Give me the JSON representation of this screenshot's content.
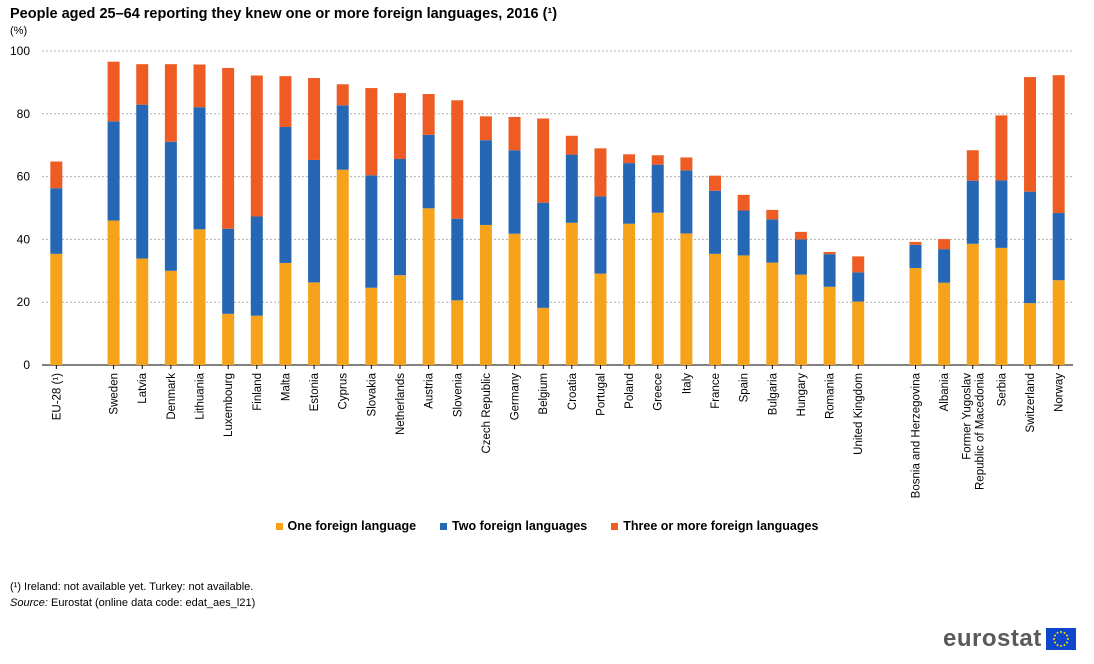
{
  "title": "People aged 25–64 reporting they knew one or more foreign languages, 2016 (¹)",
  "unit": "(%)",
  "footnote": "(¹) Ireland: not available yet. Turkey: not available.",
  "source_label": "Source:",
  "source_text": "Eurostat (online data code: edat_aes_l21)",
  "logo_text": "eurostat",
  "colors": {
    "one": "#f7a21b",
    "two": "#2667b5",
    "three": "#ee5c24",
    "grid": "#b0b0b0"
  },
  "chart_data": {
    "type": "bar",
    "stacked": true,
    "title": "People aged 25–64 reporting they knew one or more foreign languages, 2016 (¹)",
    "ylabel": "(%)",
    "ylim": [
      0,
      100
    ],
    "yticks": [
      0,
      20,
      40,
      60,
      80,
      100
    ],
    "grid": true,
    "legend_position": "bottom",
    "categories": [
      "EU-28 (¹)",
      "",
      "Sweden",
      "Latvia",
      "Denmark",
      "Lithuania",
      "Luxembourg",
      "Finland",
      "Malta",
      "Estonia",
      "Cyprus",
      "Slovakia",
      "Netherlands",
      "Austria",
      "Slovenia",
      "Czech Republic",
      "Germany",
      "Belgium",
      "Croatia",
      "Portugal",
      "Poland",
      "Greece",
      "Italy",
      "France",
      "Spain",
      "Bulgaria",
      "Hungary",
      "Romania",
      "United Kingdom",
      "",
      "Bosnia and Herzegovina",
      "Albania",
      "Former Yugoslav|Republic of Macedonia",
      "Serbia",
      "Switzerland",
      "Norway"
    ],
    "series": [
      {
        "name": "One foreign language",
        "values": [
          35.4,
          null,
          46.0,
          33.9,
          30.0,
          43.2,
          16.3,
          15.7,
          32.5,
          26.3,
          62.2,
          24.6,
          28.6,
          49.9,
          20.6,
          44.6,
          41.8,
          18.2,
          45.3,
          29.1,
          45.0,
          48.5,
          41.9,
          35.4,
          34.9,
          32.6,
          28.8,
          24.9,
          20.2,
          null,
          30.9,
          26.2,
          38.6,
          37.3,
          19.7,
          27.0
        ]
      },
      {
        "name": "Two foreign languages",
        "values": [
          20.9,
          null,
          31.6,
          49.0,
          41.1,
          38.9,
          27.1,
          31.6,
          43.3,
          39.0,
          20.5,
          35.8,
          37.0,
          23.4,
          26.0,
          27.0,
          26.6,
          33.5,
          21.7,
          24.6,
          19.3,
          15.3,
          20.1,
          20.1,
          14.3,
          13.8,
          11.2,
          10.4,
          9.3,
          null,
          7.4,
          10.7,
          20.1,
          21.5,
          35.5,
          21.4
        ]
      },
      {
        "name": "Three or more foreign languages",
        "values": [
          8.5,
          null,
          19.0,
          12.9,
          24.7,
          13.6,
          51.2,
          44.9,
          16.2,
          26.1,
          6.7,
          27.8,
          21.0,
          13.0,
          37.7,
          7.6,
          10.6,
          26.8,
          6.0,
          15.3,
          2.8,
          3.0,
          4.1,
          4.8,
          5.0,
          3.0,
          2.4,
          0.7,
          5.1,
          null,
          0.9,
          3.2,
          9.7,
          20.7,
          36.5,
          43.9
        ]
      }
    ]
  }
}
